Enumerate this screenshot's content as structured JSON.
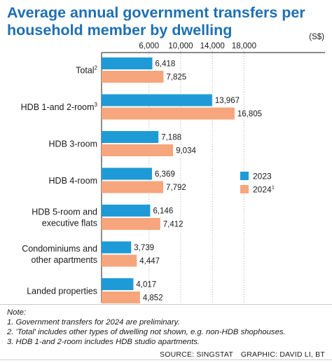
{
  "title_line1": "Average annual government transfers per",
  "title_line2": "household member by dwelling",
  "chart_data": {
    "type": "bar",
    "orientation": "horizontal",
    "title": "Average annual government transfers per household member by dwelling",
    "unit_label": "(S$)",
    "xlim": [
      0,
      20500
    ],
    "ticks": [
      6000,
      10000,
      14000,
      18000
    ],
    "tick_labels": [
      "6,000",
      "10,000",
      "14,000",
      "18,000"
    ],
    "categories": [
      {
        "label": [
          "Total"
        ],
        "sup": "2"
      },
      {
        "label": [
          "HDB 1-and 2-room"
        ],
        "sup": "3"
      },
      {
        "label": [
          "HDB 3-room"
        ],
        "sup": ""
      },
      {
        "label": [
          "HDB 4-room"
        ],
        "sup": ""
      },
      {
        "label": [
          "HDB 5-room and",
          "executive flats"
        ],
        "sup": ""
      },
      {
        "label": [
          "Condominiums and",
          "other apartments"
        ],
        "sup": ""
      },
      {
        "label": [
          "Landed properties"
        ],
        "sup": ""
      }
    ],
    "series": [
      {
        "name": "2023",
        "sup": "",
        "color": "#1e9bd7",
        "values": [
          6418,
          13967,
          7188,
          6369,
          6146,
          3739,
          4017
        ],
        "labels": [
          "6,418",
          "13,967",
          "7,188",
          "6,369",
          "6,146",
          "3,739",
          "4,017"
        ]
      },
      {
        "name": "2024",
        "sup": "1",
        "color": "#f6a57c",
        "values": [
          7825,
          16805,
          9034,
          7792,
          7412,
          4447,
          4852
        ],
        "labels": [
          "7,825",
          "16,805",
          "9,034",
          "7,792",
          "7,412",
          "4,447",
          "4,852"
        ]
      }
    ],
    "legend_position": "right",
    "grid": true
  },
  "footer": {
    "note": "Note:",
    "notes": [
      "1. Government transfers for 2024 are preliminary.",
      "2. 'Total' includes other types of dwelling not shown, e.g. non-HDB shophouses.",
      "3. HDB 1-and 2-room includes HDB studio apartments."
    ],
    "source": "SOURCE: SINGSTAT",
    "graphic": "GRAPHIC: DAVID LI, BT"
  }
}
